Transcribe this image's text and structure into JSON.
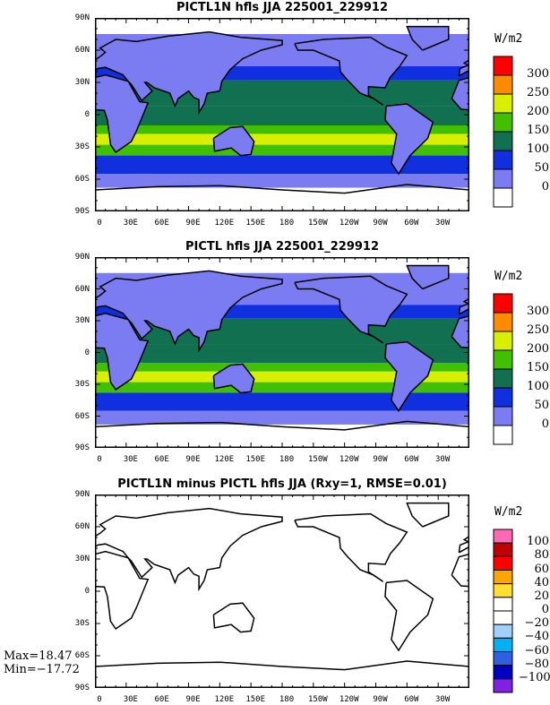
{
  "x_ticks": [
    "0",
    "30E",
    "60E",
    "90E",
    "120E",
    "150E",
    "180",
    "150W",
    "120W",
    "90W",
    "60W",
    "30W"
  ],
  "y_ticks": [
    "90N",
    "60N",
    "30N",
    "0",
    "30S",
    "60S",
    "90S"
  ],
  "panels": [
    {
      "title": "PICTL1N hfls JJA 225001_229912",
      "units": "W/m2",
      "field": "mean",
      "legend": {
        "labels": [
          "300",
          "250",
          "200",
          "150",
          "100",
          "50",
          "0"
        ],
        "colors": [
          "#ff0000",
          "#ff8c00",
          "#d8f000",
          "#40c000",
          "#107050",
          "#1030e0",
          "#7b7bf2",
          "#ffffff"
        ]
      }
    },
    {
      "title": "PICTL hfls JJA 225001_229912",
      "units": "W/m2",
      "field": "mean",
      "legend": {
        "labels": [
          "300",
          "250",
          "200",
          "150",
          "100",
          "50",
          "0"
        ],
        "colors": [
          "#ff0000",
          "#ff8c00",
          "#d8f000",
          "#40c000",
          "#107050",
          "#1030e0",
          "#7b7bf2",
          "#ffffff"
        ]
      }
    },
    {
      "title": "PICTL1N minus PICTL hfls JJA (Rxy=1, RMSE=0.01)",
      "units": "W/m2",
      "field": "diff",
      "legend": {
        "labels": [
          "100",
          "80",
          "60",
          "40",
          "20",
          "0",
          "−20",
          "−40",
          "−60",
          "−80",
          "−100"
        ],
        "colors": [
          "#ff69b4",
          "#c00000",
          "#ff0000",
          "#ffa500",
          "#ffe030",
          "#ffffff",
          "#ffffff",
          "#a0d0ff",
          "#00b0f0",
          "#3060e0",
          "#0000c0",
          "#8020e0"
        ]
      }
    }
  ],
  "stats": {
    "max": "Max=18.47",
    "min": "Min=−17.72"
  }
}
